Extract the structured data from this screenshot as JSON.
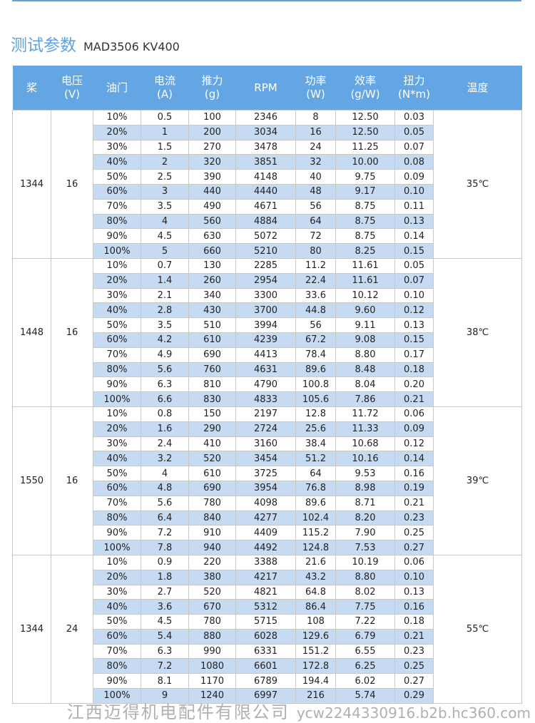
{
  "title": "测试参数",
  "model": "MAD3506 KV400",
  "headers": [
    "桨",
    "电压\n(V)",
    "油门",
    "电流\n(A)",
    "推力\n(g)",
    "RPM",
    "功率\n(W)",
    "效率\n(g/W)",
    "扭力\n(N*m)",
    "温度"
  ],
  "groups": [
    {
      "prop": "1344",
      "voltage": "16",
      "temp": "35℃",
      "rows": [
        [
          "10%",
          "0.5",
          "100",
          "2346",
          "8",
          "12.50",
          "0.03"
        ],
        [
          "20%",
          "1",
          "200",
          "3034",
          "16",
          "12.50",
          "0.05"
        ],
        [
          "30%",
          "1.5",
          "270",
          "3478",
          "24",
          "11.25",
          "0.07"
        ],
        [
          "40%",
          "2",
          "320",
          "3851",
          "32",
          "10.00",
          "0.08"
        ],
        [
          "50%",
          "2.5",
          "390",
          "4148",
          "40",
          "9.75",
          "0.09"
        ],
        [
          "60%",
          "3",
          "440",
          "4440",
          "48",
          "9.17",
          "0.10"
        ],
        [
          "70%",
          "3.5",
          "490",
          "4671",
          "56",
          "8.75",
          "0.11"
        ],
        [
          "80%",
          "4",
          "560",
          "4884",
          "64",
          "8.75",
          "0.13"
        ],
        [
          "90%",
          "4.5",
          "630",
          "5072",
          "72",
          "8.75",
          "0.14"
        ],
        [
          "100%",
          "5",
          "660",
          "5210",
          "80",
          "8.25",
          "0.15"
        ]
      ]
    },
    {
      "prop": "1448",
      "voltage": "16",
      "temp": "38℃",
      "rows": [
        [
          "10%",
          "0.7",
          "130",
          "2285",
          "11.2",
          "11.61",
          "0.05"
        ],
        [
          "20%",
          "1.4",
          "260",
          "2954",
          "22.4",
          "11.61",
          "0.07"
        ],
        [
          "30%",
          "2.1",
          "340",
          "3300",
          "33.6",
          "10.12",
          "0.10"
        ],
        [
          "40%",
          "2.8",
          "430",
          "3700",
          "44.8",
          "9.60",
          "0.12"
        ],
        [
          "50%",
          "3.5",
          "510",
          "3994",
          "56",
          "9.11",
          "0.13"
        ],
        [
          "60%",
          "4.2",
          "610",
          "4239",
          "67.2",
          "9.08",
          "0.15"
        ],
        [
          "70%",
          "4.9",
          "690",
          "4413",
          "78.4",
          "8.80",
          "0.17"
        ],
        [
          "80%",
          "5.6",
          "760",
          "4631",
          "89.6",
          "8.48",
          "0.18"
        ],
        [
          "90%",
          "6.3",
          "810",
          "4790",
          "100.8",
          "8.04",
          "0.20"
        ],
        [
          "100%",
          "6.6",
          "830",
          "4833",
          "105.6",
          "7.86",
          "0.21"
        ]
      ]
    },
    {
      "prop": "1550",
      "voltage": "16",
      "temp": "39℃",
      "rows": [
        [
          "10%",
          "0.8",
          "150",
          "2197",
          "12.8",
          "11.72",
          "0.06"
        ],
        [
          "20%",
          "1.6",
          "290",
          "2724",
          "25.6",
          "11.33",
          "0.09"
        ],
        [
          "30%",
          "2.4",
          "410",
          "3160",
          "38.4",
          "10.68",
          "0.12"
        ],
        [
          "40%",
          "3.2",
          "520",
          "3454",
          "51.2",
          "10.16",
          "0.14"
        ],
        [
          "50%",
          "4",
          "610",
          "3725",
          "64",
          "9.53",
          "0.16"
        ],
        [
          "60%",
          "4.8",
          "690",
          "3954",
          "76.8",
          "8.98",
          "0.19"
        ],
        [
          "70%",
          "5.6",
          "780",
          "4098",
          "89.6",
          "8.71",
          "0.21"
        ],
        [
          "80%",
          "6.4",
          "840",
          "4277",
          "102.4",
          "8.20",
          "0.23"
        ],
        [
          "90%",
          "7.2",
          "910",
          "4409",
          "115.2",
          "7.90",
          "0.25"
        ],
        [
          "100%",
          "7.8",
          "940",
          "4492",
          "124.8",
          "7.53",
          "0.27"
        ]
      ]
    },
    {
      "prop": "1344",
      "voltage": "24",
      "temp": "55℃",
      "rows": [
        [
          "10%",
          "0.9",
          "220",
          "3388",
          "21.6",
          "10.19",
          "0.06"
        ],
        [
          "20%",
          "1.8",
          "380",
          "4217",
          "43.2",
          "8.80",
          "0.10"
        ],
        [
          "30%",
          "2.7",
          "520",
          "4821",
          "64.8",
          "8.02",
          "0.13"
        ],
        [
          "40%",
          "3.6",
          "670",
          "5312",
          "86.4",
          "7.75",
          "0.16"
        ],
        [
          "50%",
          "4.5",
          "780",
          "5715",
          "108",
          "7.22",
          "0.18"
        ],
        [
          "60%",
          "5.4",
          "880",
          "6028",
          "129.6",
          "6.79",
          "0.21"
        ],
        [
          "70%",
          "6.3",
          "990",
          "6331",
          "151.2",
          "6.55",
          "0.23"
        ],
        [
          "80%",
          "7.2",
          "1080",
          "6601",
          "172.8",
          "6.25",
          "0.25"
        ],
        [
          "90%",
          "8.1",
          "1170",
          "6789",
          "194.4",
          "6.02",
          "0.27"
        ],
        [
          "100%",
          "9",
          "1240",
          "6997",
          "216",
          "5.74",
          "0.29"
        ]
      ]
    }
  ],
  "watermark": {
    "company": "江西迈得机电配件有限公司",
    "site": "ycw2244330916.b2b.hc360.com"
  }
}
